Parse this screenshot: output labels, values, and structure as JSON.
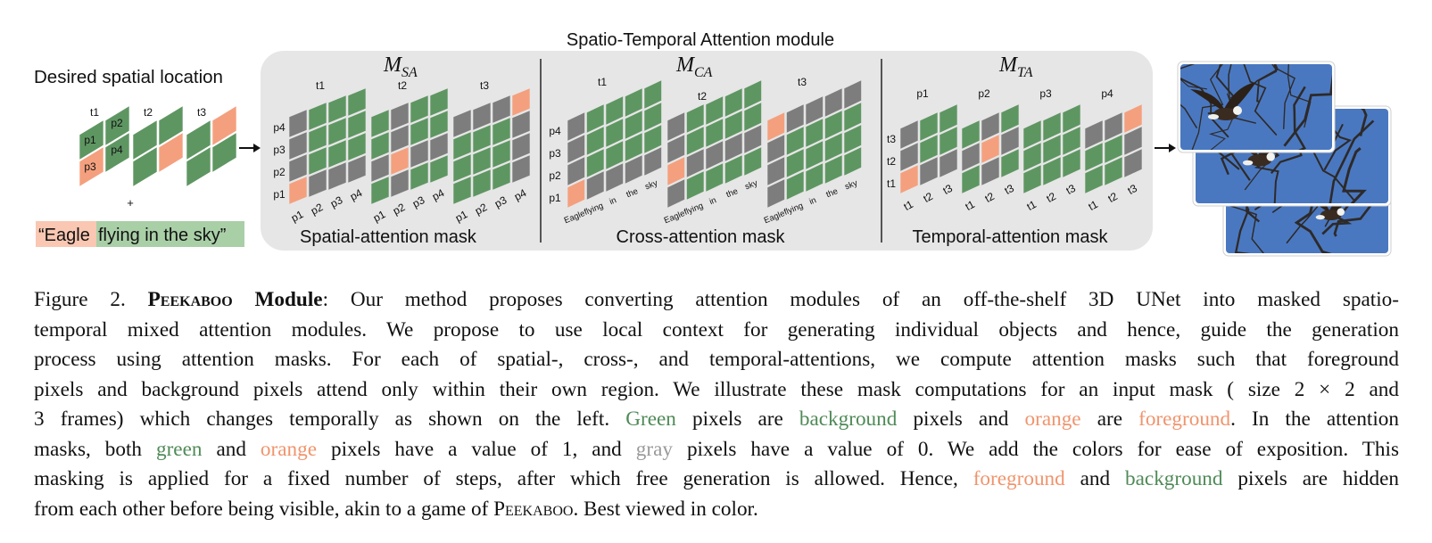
{
  "module_title": "Spatio-Temporal Attention module",
  "input": {
    "title": "Desired spatial location",
    "frames": [
      "t1",
      "t2",
      "t3"
    ],
    "cells": [
      "p1",
      "p2",
      "p3",
      "p4"
    ],
    "plus": "+",
    "prompt_fg": "“Eagle",
    "prompt_bg": "flying in the sky”"
  },
  "panels": {
    "spatial": {
      "symbol": "M",
      "sub": "SA",
      "label": "Spatial-attention mask",
      "groups": [
        "t1",
        "t2",
        "t3"
      ],
      "rows": [
        "p4",
        "p3",
        "p2",
        "p1"
      ],
      "cols": [
        "p1",
        "p2",
        "p3",
        "p4"
      ]
    },
    "cross": {
      "symbol": "M",
      "sub": "CA",
      "label": "Cross-attention mask",
      "groups": [
        "t1",
        "t2",
        "t3"
      ],
      "rows": [
        "p4",
        "p3",
        "p2",
        "p1"
      ],
      "cols": [
        "Eagle",
        "flying",
        "in",
        "the",
        "sky"
      ]
    },
    "temporal": {
      "symbol": "M",
      "sub": "TA",
      "label": "Temporal-attention mask",
      "groups": [
        "p1",
        "p2",
        "p3",
        "p4"
      ],
      "rows": [
        "t3",
        "t2",
        "t1"
      ],
      "cols": [
        "t1",
        "t2",
        "t3"
      ]
    }
  },
  "colors": {
    "green": "#5e9662",
    "orange": "#f4a07e",
    "gray": "#7d7d7d",
    "panel_bg": "#e6e6e6",
    "sky": "#4a78c0"
  },
  "caption": {
    "l1_a": "Figure 2.  ",
    "l1_name": "Peekaboo",
    "l1_b": " Module",
    "l1_c": ":  Our method proposes converting attention modules of an off-the-shelf 3D UNet into masked spatio-",
    "l2": "temporal mixed attention modules.  We propose to use local context for generating individual objects and hence, guide the generation",
    "l3": "process using attention masks.  For each of spatial-, cross-, and temporal-attentions, we compute attention masks such that foreground",
    "l4": "pixels and background pixels attend only within their own region. We illustrate these mask computations for an input mask ( size 2 × 2 and",
    "l5_a": "3 frames) which changes temporally as shown on the left. ",
    "l5_green": "Green",
    "l5_b": " pixels are ",
    "l5_bg": "background",
    "l5_c": " pixels and ",
    "l5_orange": "orange",
    "l5_d": " are ",
    "l5_fg": "foreground",
    "l5_e": ". In the attention",
    "l6_a": "masks, both ",
    "l6_green": "green",
    "l6_b": " and ",
    "l6_orange": "orange",
    "l6_c": " pixels have a value of 1, and ",
    "l6_gray": "gray",
    "l6_d": " pixels have a value of 0.  We add the colors for ease of exposition.  This",
    "l7_a": "masking is applied for a fixed number of steps, after which free generation is allowed. Hence, ",
    "l7_fg": "foreground",
    "l7_b": " and ",
    "l7_bg": "background",
    "l7_c": " pixels are hidden",
    "l8_a": "from each other before being visible, akin to a game of ",
    "l8_name": "Peekaboo",
    "l8_b": ". Best viewed in color."
  }
}
